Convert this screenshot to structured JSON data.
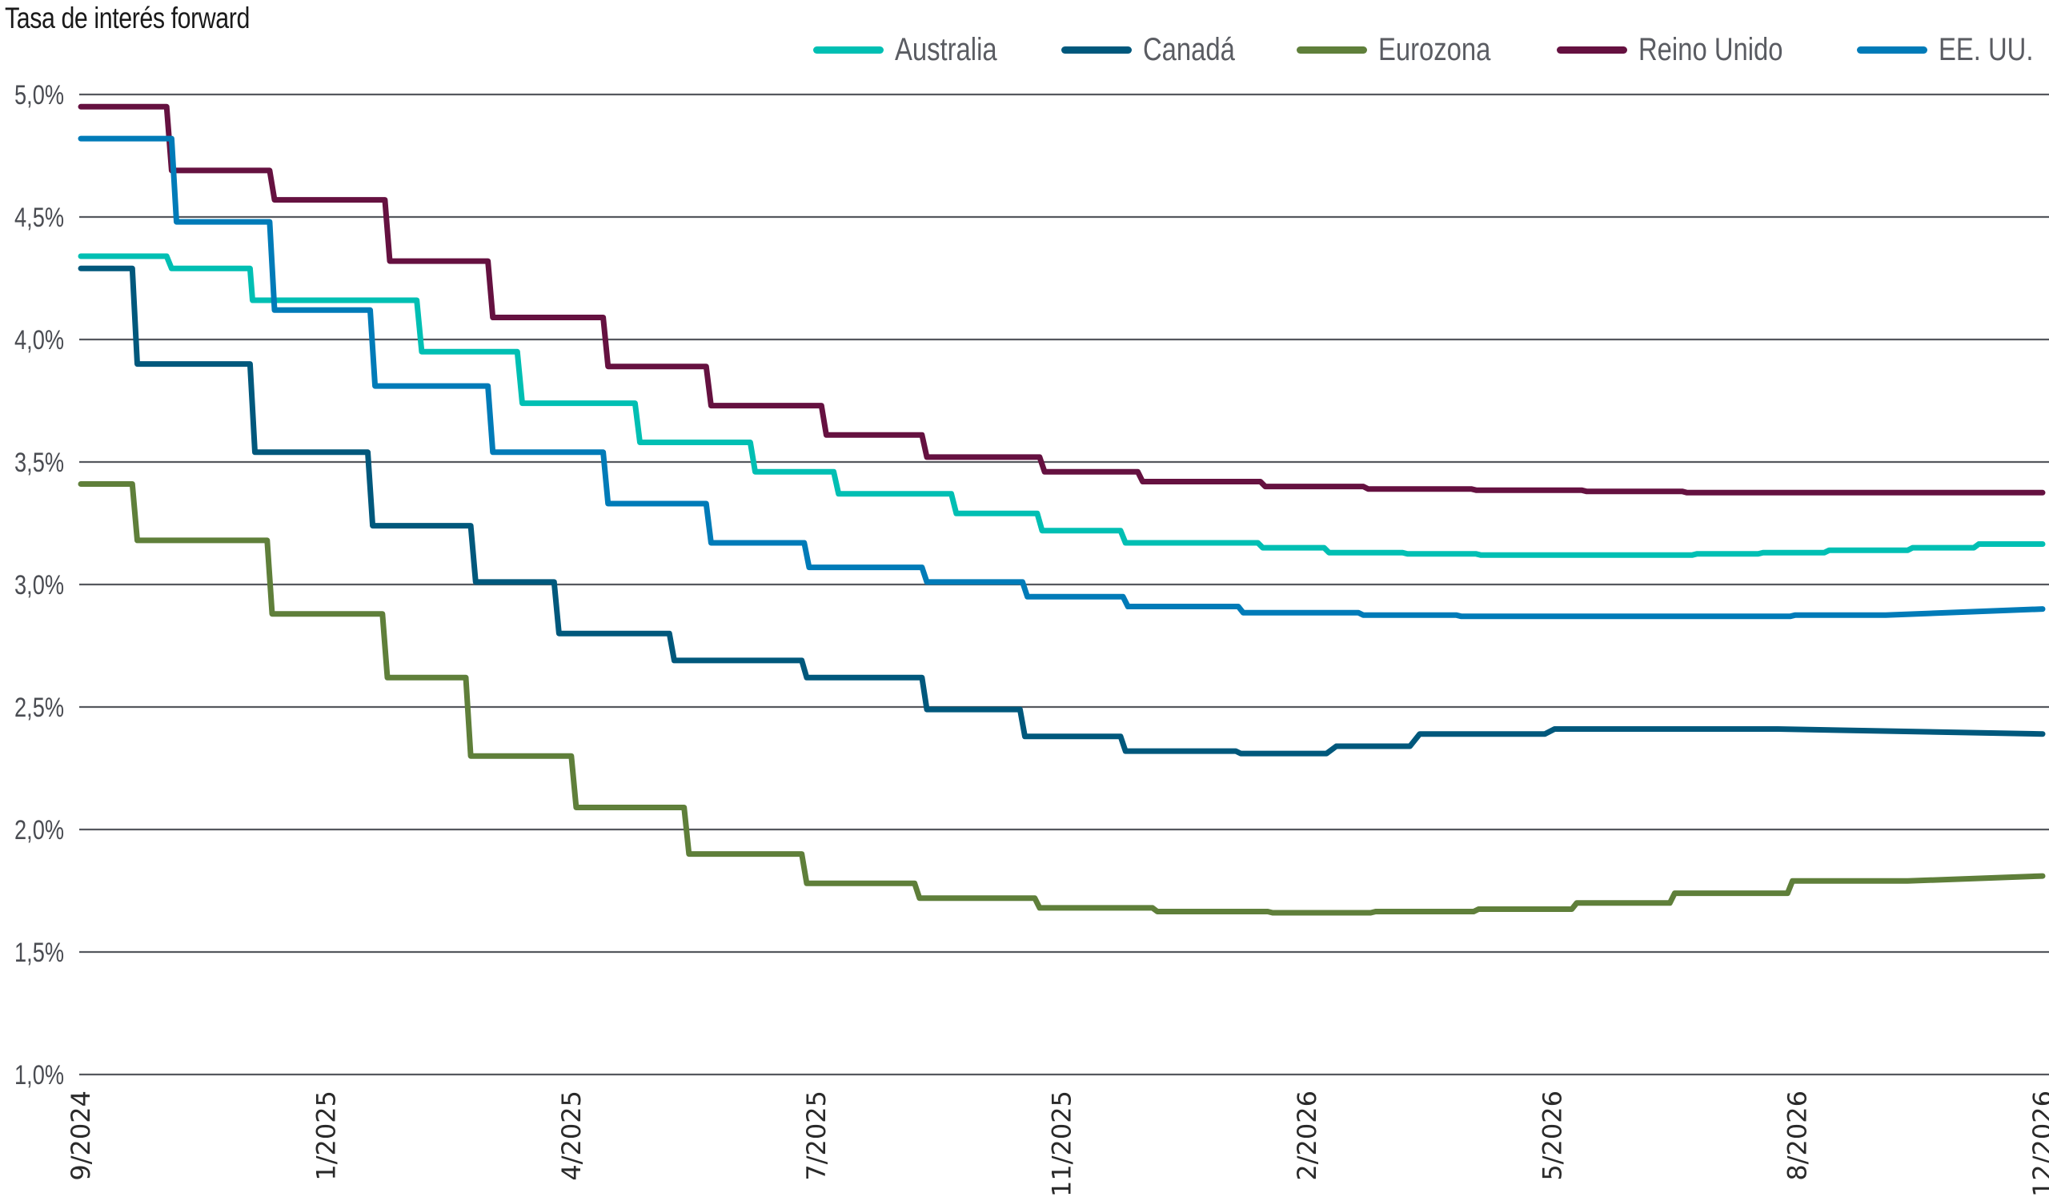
{
  "chart_data": {
    "type": "line",
    "title": "Tasa de interés forward",
    "xlabel": "",
    "ylabel": "",
    "ylim": [
      1.0,
      5.0
    ],
    "y_ticks": [
      5.0,
      4.5,
      4.0,
      3.5,
      3.0,
      2.5,
      2.0,
      1.5,
      1.0
    ],
    "y_tick_labels": [
      "5,0%",
      "4,5%",
      "4,0%",
      "3,5%",
      "3,0%",
      "2,5%",
      "2,0%",
      "1,5%",
      "1,0%"
    ],
    "x_tick_labels": [
      "9/2024",
      "1/2025",
      "4/2025",
      "7/2025",
      "11/2025",
      "2/2026",
      "5/2026",
      "8/2026",
      "12/2026"
    ],
    "x_index_range": [
      0,
      8
    ],
    "x_note": "x values are positions on the date axis measured in tick intervals (0 = 9/2024, 8 = 12/2026)",
    "grid": true,
    "legend_position": "top-right",
    "step_style": true,
    "series": [
      {
        "name": "Australia",
        "color": "#00BFB3",
        "points": [
          [
            0,
            4.34
          ],
          [
            0.35,
            4.34
          ],
          [
            0.37,
            4.29
          ],
          [
            0.69,
            4.29
          ],
          [
            0.7,
            4.16
          ],
          [
            1.37,
            4.16
          ],
          [
            1.39,
            3.95
          ],
          [
            1.78,
            3.95
          ],
          [
            1.8,
            3.74
          ],
          [
            2.26,
            3.74
          ],
          [
            2.28,
            3.58
          ],
          [
            2.73,
            3.58
          ],
          [
            2.75,
            3.46
          ],
          [
            3.07,
            3.46
          ],
          [
            3.09,
            3.37
          ],
          [
            3.55,
            3.37
          ],
          [
            3.57,
            3.29
          ],
          [
            3.9,
            3.29
          ],
          [
            3.92,
            3.22
          ],
          [
            4.24,
            3.22
          ],
          [
            4.26,
            3.17
          ],
          [
            4.8,
            3.17
          ],
          [
            4.82,
            3.15
          ],
          [
            5.07,
            3.15
          ],
          [
            5.09,
            3.13
          ],
          [
            5.39,
            3.13
          ],
          [
            5.41,
            3.125
          ],
          [
            5.69,
            3.125
          ],
          [
            5.71,
            3.12
          ],
          [
            6.57,
            3.12
          ],
          [
            6.59,
            3.125
          ],
          [
            6.84,
            3.125
          ],
          [
            6.86,
            3.13
          ],
          [
            7.11,
            3.13
          ],
          [
            7.13,
            3.14
          ],
          [
            7.45,
            3.14
          ],
          [
            7.47,
            3.15
          ],
          [
            7.72,
            3.15
          ],
          [
            7.74,
            3.165
          ],
          [
            8.0,
            3.165
          ]
        ]
      },
      {
        "name": "Canadá",
        "color": "#00587C",
        "points": [
          [
            0,
            4.29
          ],
          [
            0.21,
            4.29
          ],
          [
            0.23,
            3.9
          ],
          [
            0.69,
            3.9
          ],
          [
            0.71,
            3.54
          ],
          [
            1.17,
            3.54
          ],
          [
            1.19,
            3.24
          ],
          [
            1.59,
            3.24
          ],
          [
            1.61,
            3.01
          ],
          [
            1.93,
            3.01
          ],
          [
            1.95,
            2.8
          ],
          [
            2.4,
            2.8
          ],
          [
            2.42,
            2.69
          ],
          [
            2.94,
            2.69
          ],
          [
            2.96,
            2.62
          ],
          [
            3.43,
            2.62
          ],
          [
            3.45,
            2.49
          ],
          [
            3.83,
            2.49
          ],
          [
            3.85,
            2.38
          ],
          [
            4.24,
            2.38
          ],
          [
            4.26,
            2.32
          ],
          [
            4.71,
            2.32
          ],
          [
            4.73,
            2.31
          ],
          [
            5.08,
            2.31
          ],
          [
            5.12,
            2.34
          ],
          [
            5.42,
            2.34
          ],
          [
            5.46,
            2.39
          ],
          [
            5.97,
            2.39
          ],
          [
            6.01,
            2.41
          ],
          [
            6.92,
            2.41
          ],
          [
            8.0,
            2.39
          ]
        ]
      },
      {
        "name": "Eurozona",
        "color": "#5F7F3A",
        "points": [
          [
            0,
            3.41
          ],
          [
            0.21,
            3.41
          ],
          [
            0.23,
            3.18
          ],
          [
            0.76,
            3.18
          ],
          [
            0.78,
            2.88
          ],
          [
            1.23,
            2.88
          ],
          [
            1.25,
            2.62
          ],
          [
            1.57,
            2.62
          ],
          [
            1.59,
            2.3
          ],
          [
            2.0,
            2.3
          ],
          [
            2.02,
            2.09
          ],
          [
            2.46,
            2.09
          ],
          [
            2.48,
            1.9
          ],
          [
            2.94,
            1.9
          ],
          [
            2.96,
            1.78
          ],
          [
            3.4,
            1.78
          ],
          [
            3.42,
            1.72
          ],
          [
            3.89,
            1.72
          ],
          [
            3.91,
            1.68
          ],
          [
            4.37,
            1.68
          ],
          [
            4.39,
            1.665
          ],
          [
            4.84,
            1.665
          ],
          [
            4.86,
            1.66
          ],
          [
            5.26,
            1.66
          ],
          [
            5.28,
            1.665
          ],
          [
            5.68,
            1.665
          ],
          [
            5.7,
            1.675
          ],
          [
            6.08,
            1.675
          ],
          [
            6.1,
            1.7
          ],
          [
            6.48,
            1.7
          ],
          [
            6.5,
            1.74
          ],
          [
            6.96,
            1.74
          ],
          [
            6.98,
            1.79
          ],
          [
            7.45,
            1.79
          ],
          [
            8.0,
            1.81
          ]
        ]
      },
      {
        "name": "Reino Unido",
        "color": "#651140",
        "points": [
          [
            0,
            4.95
          ],
          [
            0.35,
            4.95
          ],
          [
            0.37,
            4.69
          ],
          [
            0.77,
            4.69
          ],
          [
            0.79,
            4.57
          ],
          [
            1.24,
            4.57
          ],
          [
            1.26,
            4.32
          ],
          [
            1.66,
            4.32
          ],
          [
            1.68,
            4.09
          ],
          [
            2.13,
            4.09
          ],
          [
            2.15,
            3.89
          ],
          [
            2.55,
            3.89
          ],
          [
            2.57,
            3.73
          ],
          [
            3.02,
            3.73
          ],
          [
            3.04,
            3.61
          ],
          [
            3.43,
            3.61
          ],
          [
            3.45,
            3.52
          ],
          [
            3.91,
            3.52
          ],
          [
            3.93,
            3.46
          ],
          [
            4.31,
            3.46
          ],
          [
            4.33,
            3.42
          ],
          [
            4.81,
            3.42
          ],
          [
            4.83,
            3.4
          ],
          [
            5.23,
            3.4
          ],
          [
            5.25,
            3.39
          ],
          [
            5.67,
            3.39
          ],
          [
            5.69,
            3.385
          ],
          [
            6.12,
            3.385
          ],
          [
            6.14,
            3.38
          ],
          [
            6.53,
            3.38
          ],
          [
            6.55,
            3.375
          ],
          [
            8.0,
            3.375
          ]
        ]
      },
      {
        "name": "EE. UU.",
        "color": "#007BB8",
        "points": [
          [
            0,
            4.82
          ],
          [
            0.37,
            4.82
          ],
          [
            0.39,
            4.48
          ],
          [
            0.77,
            4.48
          ],
          [
            0.79,
            4.12
          ],
          [
            1.18,
            4.12
          ],
          [
            1.2,
            3.81
          ],
          [
            1.66,
            3.81
          ],
          [
            1.68,
            3.54
          ],
          [
            2.13,
            3.54
          ],
          [
            2.15,
            3.33
          ],
          [
            2.55,
            3.33
          ],
          [
            2.57,
            3.17
          ],
          [
            2.95,
            3.17
          ],
          [
            2.97,
            3.07
          ],
          [
            3.43,
            3.07
          ],
          [
            3.45,
            3.01
          ],
          [
            3.84,
            3.01
          ],
          [
            3.86,
            2.95
          ],
          [
            4.25,
            2.95
          ],
          [
            4.27,
            2.91
          ],
          [
            4.72,
            2.91
          ],
          [
            4.74,
            2.885
          ],
          [
            5.21,
            2.885
          ],
          [
            5.23,
            2.875
          ],
          [
            5.61,
            2.875
          ],
          [
            5.63,
            2.87
          ],
          [
            6.55,
            2.87
          ],
          [
            6.57,
            2.87
          ],
          [
            6.97,
            2.87
          ],
          [
            6.99,
            2.875
          ],
          [
            7.36,
            2.875
          ],
          [
            8.0,
            2.9
          ]
        ]
      }
    ]
  }
}
